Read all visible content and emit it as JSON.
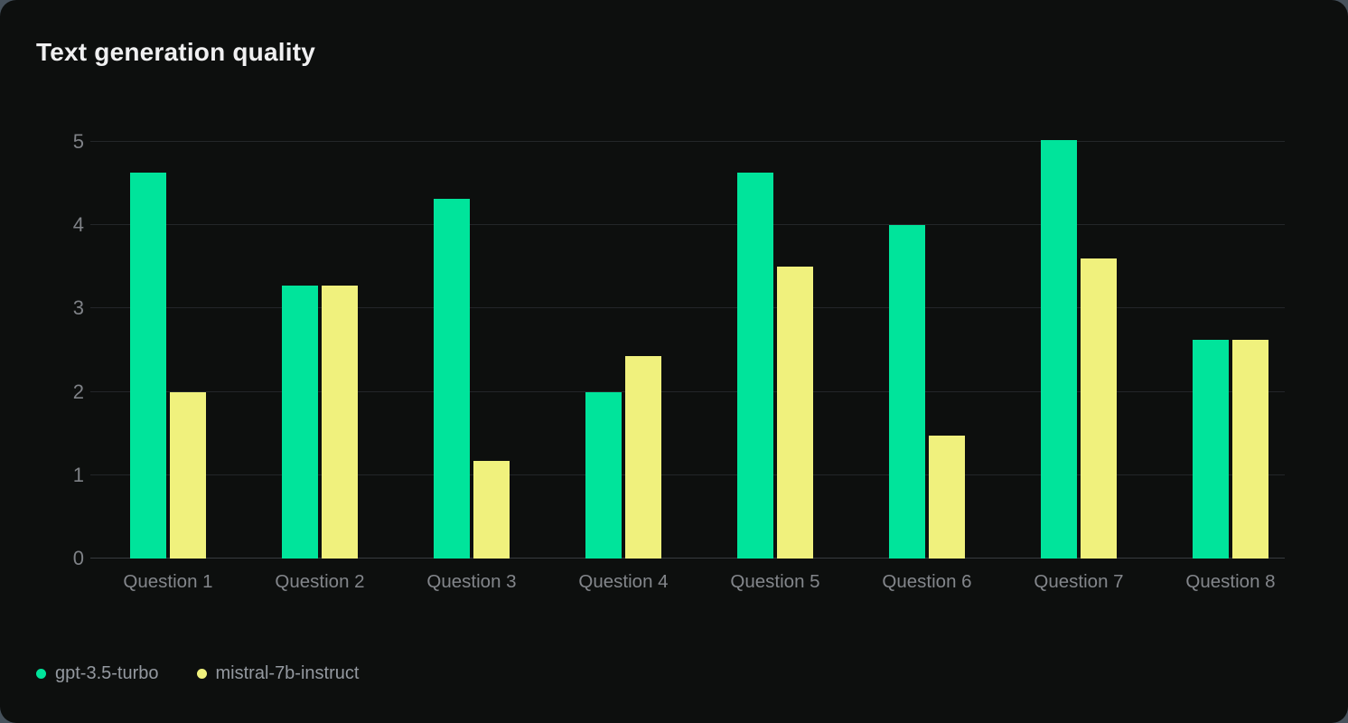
{
  "card": {
    "background": "#0d0f0e",
    "page_background": "#46515b"
  },
  "chart_data": {
    "type": "bar",
    "title": "Text generation quality",
    "categories": [
      "Question 1",
      "Question 2",
      "Question 3",
      "Question 4",
      "Question 5",
      "Question 6",
      "Question 7",
      "Question 8"
    ],
    "series": [
      {
        "name": "gpt-3.5-turbo",
        "color": "#00e49b",
        "values": [
          4.63,
          3.28,
          4.32,
          2.0,
          4.63,
          4.0,
          5.02,
          2.63
        ]
      },
      {
        "name": "mistral-7b-instruct",
        "color": "#f0f17d",
        "values": [
          2.0,
          3.28,
          1.17,
          2.43,
          3.5,
          1.47,
          3.6,
          2.63
        ]
      }
    ],
    "xlabel": "",
    "ylabel": "",
    "ylim": [
      0,
      5
    ],
    "yticks": [
      0,
      1,
      2,
      3,
      4,
      5
    ],
    "grid": true,
    "legend_position": "bottom-left",
    "grid_color": "#232629",
    "baseline_color": "#383c40"
  }
}
